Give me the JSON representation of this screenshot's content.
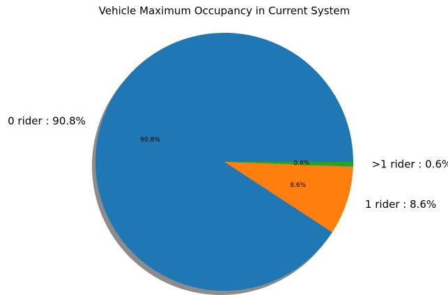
{
  "chart_data": {
    "type": "pie",
    "title": "Vehicle Maximum Occupancy in Current System",
    "categories": [
      "0 rider : 90.8%",
      "1 rider : 8.6%",
      ">1 rider : 0.6%"
    ],
    "values": [
      90.8,
      8.6,
      0.6
    ],
    "value_labels": [
      "90.8%",
      "8.6%",
      "0.6%"
    ],
    "colors": [
      "#1f77b4",
      "#ff7f0e",
      "#2ca02c"
    ],
    "shadow": true
  }
}
